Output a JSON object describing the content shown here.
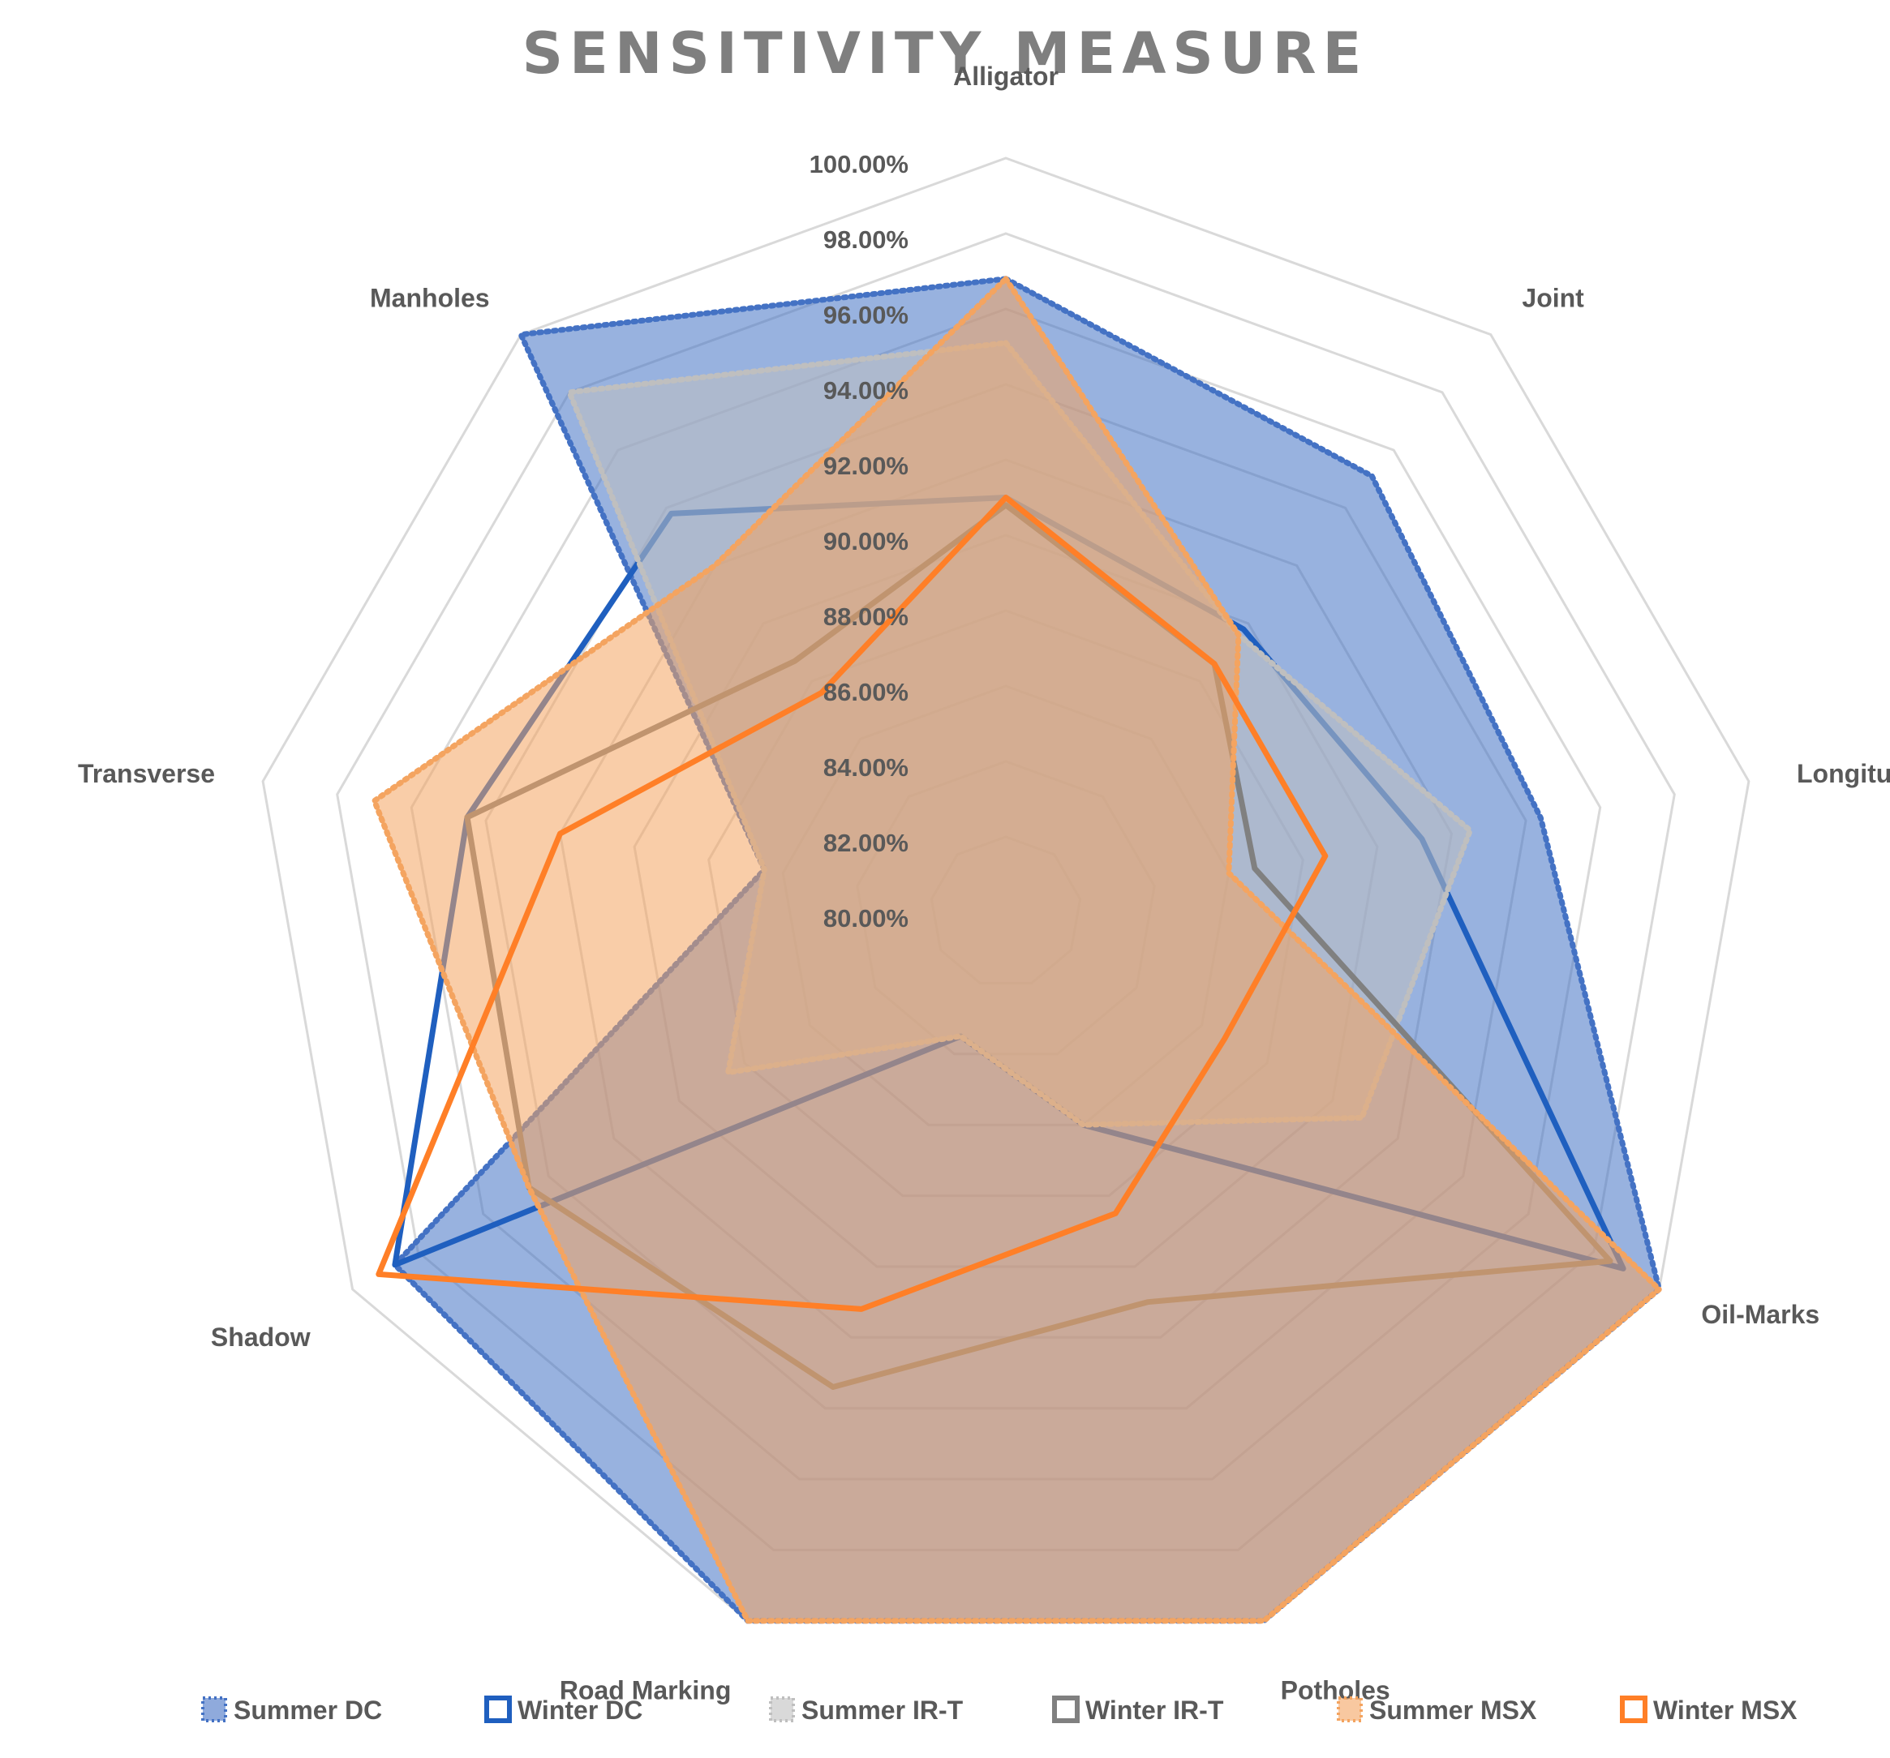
{
  "chart_data": {
    "type": "radar",
    "title": "SENSITIVITY MEASURE",
    "categories": [
      "Alligator",
      "Joint",
      "Longitudinal",
      "Oil-Marks",
      "Potholes",
      "Road Marking",
      "Shadow",
      "Transverse",
      "Manholes"
    ],
    "rlim": [
      80,
      100
    ],
    "tick_labels": [
      "80.00%",
      "82.00%",
      "84.00%",
      "86.00%",
      "88.00%",
      "90.00%",
      "92.00%",
      "94.00%",
      "96.00%",
      "98.00%",
      "100.00%"
    ],
    "grid": true,
    "legend_position": "bottom",
    "series": [
      {
        "name": "Summer DC",
        "values": [
          96.8,
          95.1,
          94.4,
          100.0,
          100.0,
          100.0,
          98.7,
          86.5,
          100.0
        ],
        "color": "#4472c4",
        "style": "filled-dotted"
      },
      {
        "name": "Winter DC",
        "values": [
          91.0,
          89.8,
          91.2,
          98.9,
          86.0,
          83.5,
          98.7,
          94.5,
          93.8
        ],
        "color": "#1f5fbf",
        "style": "line"
      },
      {
        "name": "Summer IR-T",
        "values": [
          95.1,
          89.6,
          92.5,
          90.9,
          86.0,
          83.5,
          88.5,
          86.5,
          98.0
        ],
        "color": "#bfbfbf",
        "style": "filled-dotted"
      },
      {
        "name": "Winter IR-T",
        "values": [
          90.8,
          88.6,
          86.7,
          98.5,
          91.0,
          93.4,
          94.6,
          94.5,
          88.7
        ],
        "color": "#808080",
        "style": "line"
      },
      {
        "name": "Summer MSX",
        "values": [
          96.8,
          89.6,
          86.0,
          100.0,
          100.0,
          100.0,
          94.6,
          97.0,
          92.0
        ],
        "color": "#f4a460",
        "style": "filled-dotted"
      },
      {
        "name": "Winter MSX",
        "values": [
          91.0,
          88.6,
          88.6,
          86.7,
          88.5,
          91.2,
          99.2,
          92.0,
          87.6
        ],
        "color": "#ff7f27",
        "style": "line"
      }
    ]
  }
}
